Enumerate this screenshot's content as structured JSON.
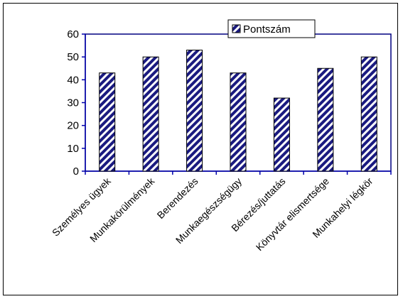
{
  "chart_data": {
    "type": "bar",
    "categories": [
      "Személyes ügyek",
      "Munkakörülmények",
      "Berendezés",
      "Munkaegészségügy",
      "Bérezés/juttatás",
      "Könyvtár elismertsége",
      "Munkahelyi légkör"
    ],
    "series": [
      {
        "name": "Pontszám",
        "values": [
          43,
          50,
          53,
          43,
          32,
          45,
          50
        ]
      }
    ],
    "ylim": [
      0,
      60
    ],
    "yticks": [
      0,
      10,
      20,
      30,
      40,
      50,
      60
    ],
    "grid": false,
    "legend": "top-right",
    "colors": {
      "bar_stripe": "#1a1a80",
      "bar_bg": "#ffffff",
      "axis": "#0000aa",
      "plot_border": "#000080"
    }
  }
}
